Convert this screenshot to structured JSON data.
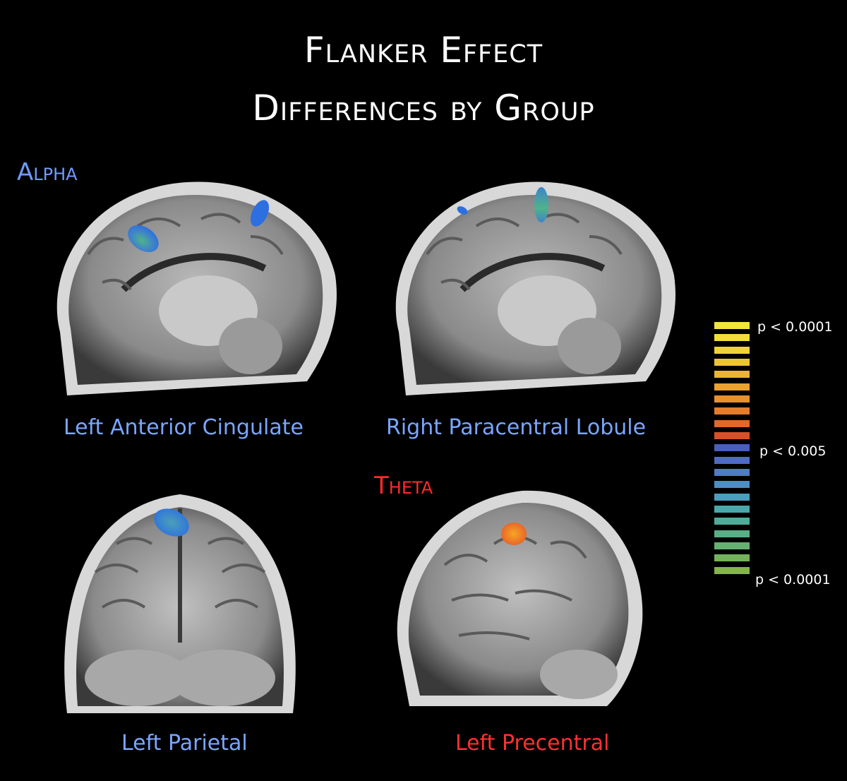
{
  "title": {
    "line1": "Flanker Effect",
    "line2": "Differences by Group"
  },
  "bands": {
    "alpha": "Alpha",
    "theta": "Theta"
  },
  "panels": [
    {
      "caption": "Left Anterior Cingulate",
      "view": "sagittal",
      "band": "alpha"
    },
    {
      "caption": "Right Paracentral Lobule",
      "view": "sagittal",
      "band": "alpha"
    },
    {
      "caption": "Left Parietal",
      "view": "coronal",
      "band": "alpha"
    },
    {
      "caption": "Left Precentral",
      "view": "sagittal",
      "band": "theta"
    }
  ],
  "legend": {
    "top_label": "p < 0.0001",
    "mid_label": "p < 0.005",
    "bottom_label": "p < 0.0001",
    "colors": [
      "#f2e63a",
      "#f2de38",
      "#efd236",
      "#eec434",
      "#ecb432",
      "#eaa230",
      "#e8902e",
      "#e47c2c",
      "#e0682a",
      "#d85028",
      "#4a5fb8",
      "#4f6cc0",
      "#4f7cc4",
      "#4d8ec4",
      "#4a9ebe",
      "#4aa8aa",
      "#50ac98",
      "#5aae86",
      "#66b072",
      "#74b25c",
      "#84b44c"
    ]
  },
  "colors": {
    "alpha": "#6f9bff",
    "theta": "#ff2a2a",
    "caption_alpha": "#7aa6ff",
    "caption_theta": "#ff3030"
  }
}
